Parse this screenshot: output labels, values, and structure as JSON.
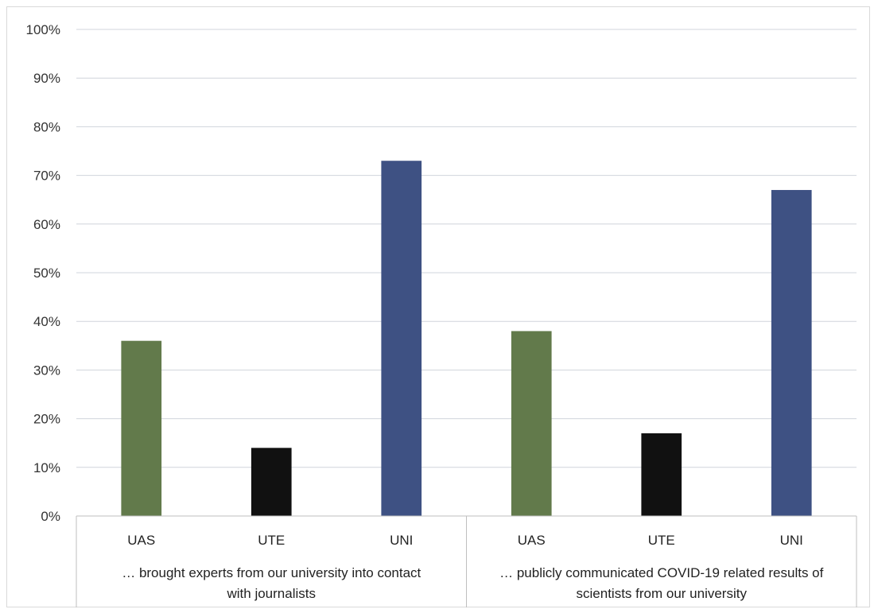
{
  "chart_data": {
    "type": "bar",
    "title": "",
    "xlabel": "",
    "ylabel": "",
    "ylim": [
      0,
      100
    ],
    "y_ticks": [
      "0%",
      "10%",
      "20%",
      "30%",
      "40%",
      "50%",
      "60%",
      "70%",
      "80%",
      "90%",
      "100%"
    ],
    "grid": true,
    "groups": [
      {
        "label_lines": [
          "… brought experts from our university into contact",
          "with journalists"
        ],
        "categories": [
          "UAS",
          "UTE",
          "UNI"
        ],
        "values": [
          36,
          14,
          73
        ]
      },
      {
        "label_lines": [
          "… publicly communicated COVID-19 related results of",
          "scientists from our university"
        ],
        "categories": [
          "UAS",
          "UTE",
          "UNI"
        ],
        "values": [
          38,
          17,
          67
        ]
      }
    ],
    "colors": {
      "UAS": "#627a4b",
      "UTE": "#111111",
      "UNI": "#3e5183"
    }
  }
}
